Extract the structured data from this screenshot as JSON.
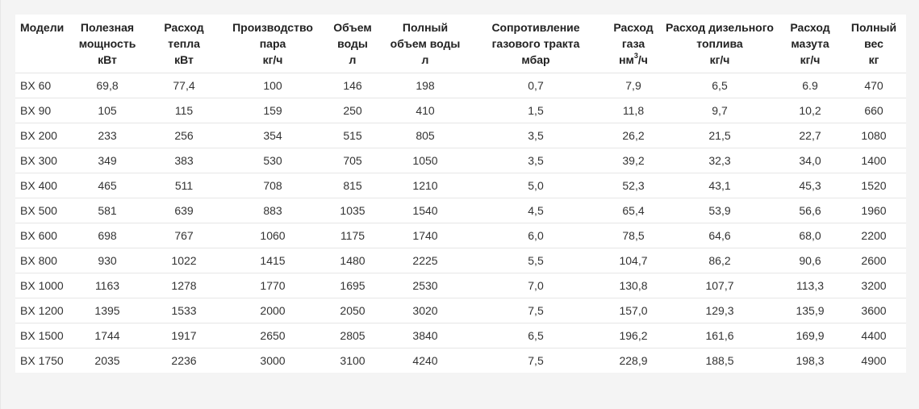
{
  "table": {
    "headers": [
      {
        "lines": [
          "Модели"
        ]
      },
      {
        "lines": [
          "Полезная",
          "мощность",
          "кВт"
        ]
      },
      {
        "lines": [
          "Расход",
          "тепла",
          "кВт"
        ]
      },
      {
        "lines": [
          "Производство",
          "пара",
          "кг/ч"
        ]
      },
      {
        "lines": [
          "Объем",
          "воды",
          "л"
        ]
      },
      {
        "lines": [
          "Полный",
          "объем воды",
          "л"
        ]
      },
      {
        "lines": [
          "Сопротивление",
          "газового тракта",
          "мбар"
        ]
      },
      {
        "lines": [
          "Расход",
          "газа",
          "нм"
        ],
        "sup": "3",
        "after_sup": "/ч"
      },
      {
        "lines": [
          "Расход дизельного",
          "топлива",
          "кг/ч"
        ]
      },
      {
        "lines": [
          "Расход",
          "мазута",
          "кг/ч"
        ]
      },
      {
        "lines": [
          "Полный",
          "вес",
          "кг"
        ]
      }
    ],
    "rows": [
      [
        "BX 60",
        "69,8",
        "77,4",
        "100",
        "146",
        "198",
        "0,7",
        "7,9",
        "6,5",
        "6.9",
        "470"
      ],
      [
        "BX 90",
        "105",
        "115",
        "159",
        "250",
        "410",
        "1,5",
        "11,8",
        "9,7",
        "10,2",
        "660"
      ],
      [
        "BX 200",
        "233",
        "256",
        "354",
        "515",
        "805",
        "3,5",
        "26,2",
        "21,5",
        "22,7",
        "1080"
      ],
      [
        "BX 300",
        "349",
        "383",
        "530",
        "705",
        "1050",
        "3,5",
        "39,2",
        "32,3",
        "34,0",
        "1400"
      ],
      [
        "BX 400",
        "465",
        "511",
        "708",
        "815",
        "1210",
        "5,0",
        "52,3",
        "43,1",
        "45,3",
        "1520"
      ],
      [
        "BX 500",
        "581",
        "639",
        "883",
        "1035",
        "1540",
        "4,5",
        "65,4",
        "53,9",
        "56,6",
        "1960"
      ],
      [
        "BX 600",
        "698",
        "767",
        "1060",
        "1175",
        "1740",
        "6,0",
        "78,5",
        "64,6",
        "68,0",
        "2200"
      ],
      [
        "BX 800",
        "930",
        "1022",
        "1415",
        "1480",
        "2225",
        "5,5",
        "104,7",
        "86,2",
        "90,6",
        "2600"
      ],
      [
        "BX 1000",
        "1163",
        "1278",
        "1770",
        "1695",
        "2530",
        "7,0",
        "130,8",
        "107,7",
        "113,3",
        "3200"
      ],
      [
        "BX 1200",
        "1395",
        "1533",
        "2000",
        "2050",
        "3020",
        "7,5",
        "157,0",
        "129,3",
        "135,9",
        "3600"
      ],
      [
        "BX 1500",
        "1744",
        "1917",
        "2650",
        "2805",
        "3840",
        "6,5",
        "196,2",
        "161,6",
        "169,9",
        "4400"
      ],
      [
        "BX 1750",
        "2035",
        "2236",
        "3000",
        "3100",
        "4240",
        "7,5",
        "228,9",
        "188,5",
        "198,3",
        "4900"
      ]
    ]
  }
}
